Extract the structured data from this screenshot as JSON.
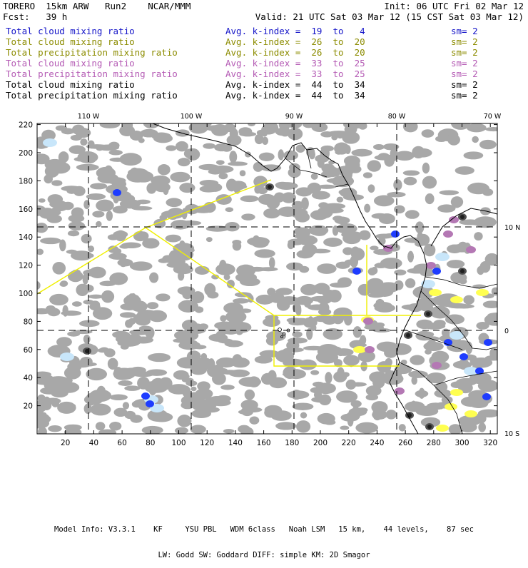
{
  "header": {
    "model": "TORERO  15km ARW   Run2    NCAR/MMM",
    "init": "Init: 06 UTC Fri 02 Mar 12",
    "fcst": "Fcst:   39 h",
    "valid": "Valid: 21 UTC Sat 03 Mar 12 (15 CST Sat 03 Mar 12)"
  },
  "legend": [
    {
      "field": "Total cloud mixing ratio",
      "kindex": "Avg. k-index =  19  to   4",
      "sm": "sm= 2",
      "color": "#1414c8"
    },
    {
      "field": "Total cloud mixing ratio",
      "kindex": "Avg. k-index =  26  to  20",
      "sm": "sm= 2",
      "color": "#8c8c00"
    },
    {
      "field": "Total precipitation mixing ratio",
      "kindex": "Avg. k-index =  26  to  20",
      "sm": "sm= 2",
      "color": "#8c8c00"
    },
    {
      "field": "Total cloud mixing ratio",
      "kindex": "Avg. k-index =  33  to  25",
      "sm": "sm= 2",
      "color": "#b45ab4"
    },
    {
      "field": "Total precipitation mixing ratio",
      "kindex": "Avg. k-index =  33  to  25",
      "sm": "sm= 2",
      "color": "#b45ab4"
    },
    {
      "field": "Total cloud mixing ratio",
      "kindex": "Avg. k-index =  44  to  34",
      "sm": "sm= 2",
      "color": "#000000"
    },
    {
      "field": "Total precipitation mixing ratio",
      "kindex": "Avg. k-index =  44  to  34",
      "sm": "sm= 2",
      "color": "#000000"
    }
  ],
  "map": {
    "lon_labels": [
      "110 W",
      "100 W",
      "90 W",
      "80 W",
      "70 W"
    ],
    "lat_labels": [
      "10 N",
      "0",
      "10 S"
    ],
    "x_ticks": [
      "20",
      "40",
      "60",
      "80",
      "100",
      "120",
      "140",
      "160",
      "180",
      "200",
      "220",
      "240",
      "260",
      "280",
      "300",
      "320"
    ],
    "y_ticks": [
      "220",
      "200",
      "180",
      "160",
      "140",
      "120",
      "100",
      "80",
      "60",
      "40",
      "20"
    ],
    "colors": {
      "cloud_gray": "#a8a8a8",
      "dark_gray": "#505050",
      "light_blue": "#c8e6fa",
      "blue": "#1e3cff",
      "yellow": "#ffff50",
      "magenta": "#b478b4",
      "domain_line": "#f0f000"
    }
  },
  "footer": {
    "line1": "Model Info: V3.3.1    KF     YSU PBL   WDM 6class   Noah LSM   15 km,    44 levels,    87 sec",
    "line2": "LW: Godd SW: Goddard DIFF: simple KM: 2D Smagor"
  }
}
